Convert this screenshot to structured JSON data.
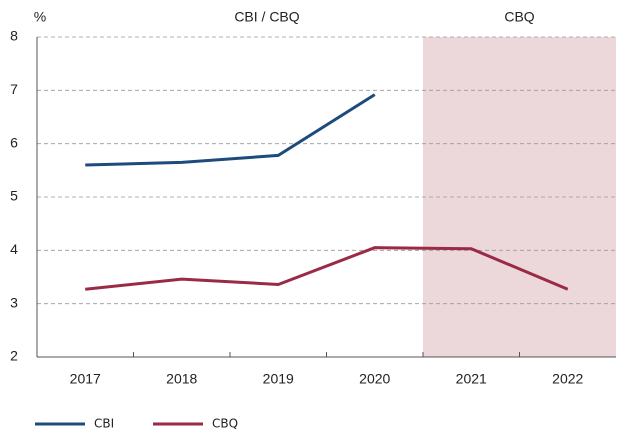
{
  "chart_data": {
    "type": "line",
    "y_unit_label": "%",
    "annotations": [
      "CBI / CBQ",
      "CBQ"
    ],
    "categories": [
      "2017",
      "2018",
      "2019",
      "2020",
      "2021",
      "2022"
    ],
    "series": [
      {
        "name": "CBI",
        "color": "#1d4c7c",
        "values": [
          5.6,
          5.65,
          5.78,
          6.92,
          null,
          null
        ]
      },
      {
        "name": "CBQ",
        "color": "#9a2a45",
        "values": [
          3.27,
          3.46,
          3.36,
          4.05,
          4.03,
          3.27
        ]
      }
    ],
    "ylim": [
      2,
      8
    ],
    "yticks": [
      2,
      3,
      4,
      5,
      6,
      7,
      8
    ],
    "grid": true,
    "shade": {
      "from": "2021",
      "color": "#ecd7da"
    }
  }
}
